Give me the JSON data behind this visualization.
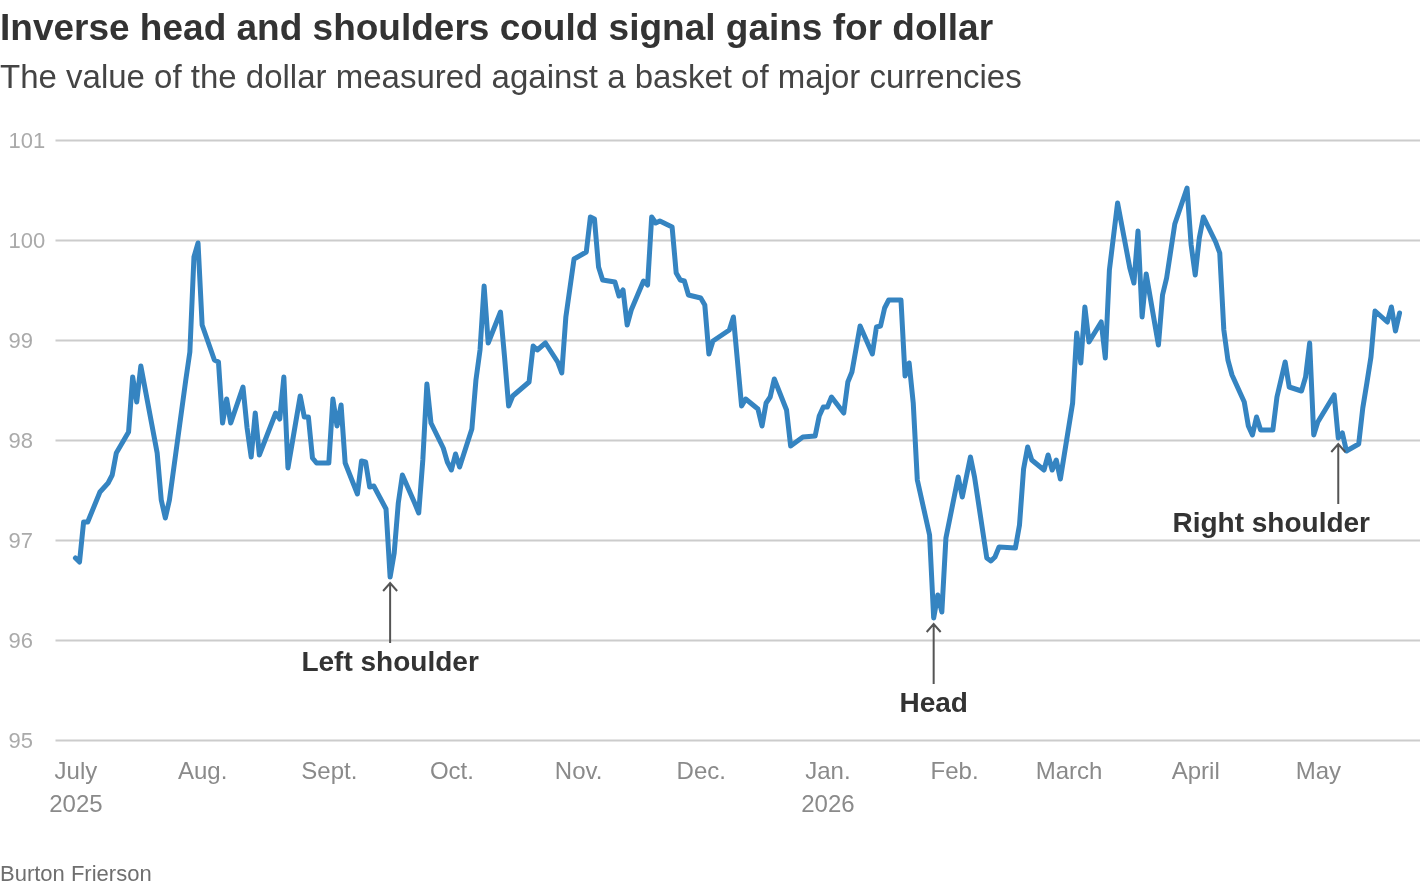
{
  "chart_data": {
    "type": "line",
    "title": "Inverse head and shoulders could signal gains for dollar",
    "subtitle": "The value of the dollar measured against a basket of major currencies",
    "x": [
      "2025-07-01",
      "2025-07-02",
      "2025-07-03",
      "2025-07-04",
      "2025-07-07",
      "2025-07-09",
      "2025-07-10",
      "2025-07-11",
      "2025-07-14",
      "2025-07-15",
      "2025-07-16",
      "2025-07-17",
      "2025-07-21",
      "2025-07-22",
      "2025-07-23",
      "2025-07-24",
      "2025-07-28",
      "2025-07-29",
      "2025-07-30",
      "2025-07-31",
      "2025-08-01",
      "2025-08-04",
      "2025-08-05",
      "2025-08-06",
      "2025-08-07",
      "2025-08-08",
      "2025-08-11",
      "2025-08-12",
      "2025-08-13",
      "2025-08-14",
      "2025-08-15",
      "2025-08-19",
      "2025-08-20",
      "2025-08-21",
      "2025-08-22",
      "2025-08-25",
      "2025-08-26",
      "2025-08-27",
      "2025-08-28",
      "2025-08-29",
      "2025-09-01",
      "2025-09-02",
      "2025-09-03",
      "2025-09-04",
      "2025-09-05",
      "2025-09-08",
      "2025-09-09",
      "2025-09-10",
      "2025-09-11",
      "2025-09-12",
      "2025-09-15",
      "2025-09-16",
      "2025-09-17",
      "2025-09-18",
      "2025-09-19",
      "2025-09-22",
      "2025-09-23",
      "2025-09-24",
      "2025-09-25",
      "2025-09-26",
      "2025-09-29",
      "2025-09-30",
      "2025-10-01",
      "2025-10-02",
      "2025-10-03",
      "2025-10-06",
      "2025-10-07",
      "2025-10-08",
      "2025-10-09",
      "2025-10-10",
      "2025-10-13",
      "2025-10-14",
      "2025-10-15",
      "2025-10-16",
      "2025-10-20",
      "2025-10-21",
      "2025-10-22",
      "2025-10-24",
      "2025-10-27",
      "2025-10-28",
      "2025-10-29",
      "2025-10-31",
      "2025-11-03",
      "2025-11-04",
      "2025-11-05",
      "2025-11-06",
      "2025-11-07",
      "2025-11-10",
      "2025-11-11",
      "2025-11-12",
      "2025-11-13",
      "2025-11-14",
      "2025-11-17",
      "2025-11-18",
      "2025-11-19",
      "2025-11-20",
      "2025-11-21",
      "2025-11-24",
      "2025-11-25",
      "2025-11-26",
      "2025-11-27",
      "2025-11-28",
      "2025-12-01",
      "2025-12-02",
      "2025-12-03",
      "2025-12-04",
      "2025-12-08",
      "2025-12-09",
      "2025-12-11",
      "2025-12-12",
      "2025-12-15",
      "2025-12-16",
      "2025-12-17",
      "2025-12-18",
      "2025-12-19",
      "2025-12-22",
      "2025-12-23",
      "2025-12-24",
      "2025-12-26",
      "2025-12-29",
      "2025-12-30",
      "2025-12-31",
      "2026-01-01",
      "2026-01-02",
      "2026-01-05",
      "2026-01-06",
      "2026-01-07",
      "2026-01-09",
      "2026-01-12",
      "2026-01-13",
      "2026-01-14",
      "2026-01-15",
      "2026-01-16",
      "2026-01-19",
      "2026-01-20",
      "2026-01-21",
      "2026-01-22",
      "2026-01-23",
      "2026-01-26",
      "2026-01-27",
      "2026-01-28",
      "2026-01-29",
      "2026-01-30",
      "2026-02-02",
      "2026-02-03",
      "2026-02-05",
      "2026-02-06",
      "2026-02-09",
      "2026-02-10",
      "2026-02-11",
      "2026-02-12",
      "2026-02-16",
      "2026-02-17",
      "2026-02-18",
      "2026-02-19",
      "2026-02-20",
      "2026-02-23",
      "2026-02-24",
      "2026-02-25",
      "2026-02-26",
      "2026-02-27",
      "2026-03-02",
      "2026-03-03",
      "2026-03-04",
      "2026-03-05",
      "2026-03-06",
      "2026-03-09",
      "2026-03-10",
      "2026-03-11",
      "2026-03-13",
      "2026-03-16",
      "2026-03-17",
      "2026-03-18",
      "2026-03-19",
      "2026-03-20",
      "2026-03-23",
      "2026-03-24",
      "2026-03-25",
      "2026-03-27",
      "2026-03-30",
      "2026-03-31",
      "2026-04-01",
      "2026-04-02",
      "2026-04-03",
      "2026-04-06",
      "2026-04-07",
      "2026-04-08",
      "2026-04-09",
      "2026-04-10",
      "2026-04-13",
      "2026-04-14",
      "2026-04-15",
      "2026-04-16",
      "2026-04-17",
      "2026-04-20",
      "2026-04-21",
      "2026-04-23",
      "2026-04-24",
      "2026-04-27",
      "2026-04-28",
      "2026-04-29",
      "2026-04-30",
      "2026-05-01",
      "2026-05-05",
      "2026-05-06",
      "2026-05-07",
      "2026-05-08",
      "2026-05-11",
      "2026-05-12",
      "2026-05-13",
      "2026-05-14",
      "2026-05-15",
      "2026-05-18",
      "2026-05-19",
      "2026-05-20",
      "2026-05-21"
    ],
    "series": [
      {
        "color": "#3584c1",
        "values": [
          96.82,
          96.78,
          97.18,
          97.18,
          97.48,
          97.57,
          97.65,
          97.87,
          98.08,
          98.63,
          98.38,
          98.74,
          97.87,
          97.4,
          97.22,
          97.4,
          98.6,
          98.88,
          99.83,
          99.97,
          99.15,
          98.8,
          98.78,
          98.17,
          98.41,
          98.17,
          98.53,
          98.12,
          97.83,
          98.27,
          97.85,
          98.27,
          98.21,
          98.63,
          97.72,
          98.44,
          98.23,
          98.23,
          97.82,
          97.77,
          97.77,
          98.41,
          98.14,
          98.35,
          97.77,
          97.46,
          97.79,
          97.78,
          97.53,
          97.54,
          97.31,
          96.63,
          96.87,
          97.37,
          97.65,
          97.37,
          97.27,
          97.8,
          98.56,
          98.17,
          97.92,
          97.78,
          97.7,
          97.86,
          97.73,
          98.11,
          98.6,
          98.9,
          99.54,
          98.97,
          99.28,
          98.83,
          98.34,
          98.44,
          98.58,
          98.94,
          98.9,
          98.97,
          98.78,
          98.67,
          99.23,
          99.81,
          99.88,
          100.23,
          100.21,
          99.73,
          99.6,
          99.58,
          99.44,
          99.5,
          99.15,
          99.3,
          99.59,
          99.55,
          100.23,
          100.17,
          100.19,
          100.13,
          99.67,
          99.6,
          99.59,
          99.45,
          99.42,
          99.35,
          98.86,
          98.99,
          99.1,
          99.23,
          98.34,
          98.41,
          98.31,
          98.14,
          98.37,
          98.43,
          98.61,
          98.3,
          97.94,
          97.97,
          98.03,
          98.04,
          98.24,
          98.33,
          98.33,
          98.43,
          98.27,
          98.58,
          98.68,
          99.14,
          98.86,
          99.13,
          99.14,
          99.32,
          99.4,
          99.4,
          98.64,
          98.77,
          98.37,
          97.6,
          97.05,
          96.22,
          96.45,
          96.28,
          97.02,
          97.63,
          97.43,
          97.83,
          97.63,
          96.82,
          96.79,
          96.83,
          96.93,
          96.92,
          97.15,
          97.71,
          97.93,
          97.8,
          97.7,
          97.85,
          97.7,
          97.8,
          97.61,
          98.37,
          99.07,
          98.77,
          99.33,
          98.98,
          99.18,
          98.82,
          99.7,
          100.37,
          99.72,
          99.57,
          100.09,
          99.23,
          99.66,
          98.95,
          99.45,
          99.62,
          100.16,
          100.52,
          99.95,
          99.65,
          100.02,
          100.23,
          99.98,
          99.87,
          99.1,
          98.8,
          98.65,
          98.38,
          98.14,
          98.05,
          98.23,
          98.1,
          98.1,
          98.43,
          98.78,
          98.53,
          98.49,
          98.63,
          98.97,
          98.05,
          98.18,
          98.45,
          98.02,
          98.07,
          97.89,
          97.96,
          98.32,
          98.57,
          98.83,
          99.29,
          99.18,
          99.33,
          99.09,
          99.27
        ]
      }
    ],
    "xlim": [
      "2025-06-26",
      "2026-05-26"
    ],
    "xticks": [
      {
        "value": "2025-07-01",
        "label": "July 2025"
      },
      {
        "value": "2025-08-01",
        "label": "Aug."
      },
      {
        "value": "2025-09-01",
        "label": "Sept."
      },
      {
        "value": "2025-10-01",
        "label": "Oct."
      },
      {
        "value": "2025-11-01",
        "label": "Nov."
      },
      {
        "value": "2025-12-01",
        "label": "Dec."
      },
      {
        "value": "2026-01-01",
        "label": "Jan. 2026"
      },
      {
        "value": "2026-02-01",
        "label": "Feb."
      },
      {
        "value": "2026-03-01",
        "label": "March"
      },
      {
        "value": "2026-04-01",
        "label": "April"
      },
      {
        "value": "2026-05-01",
        "label": "May"
      }
    ],
    "ylim": [
      95,
      101
    ],
    "yticks": [
      95,
      96,
      97,
      98,
      99,
      100,
      101
    ],
    "grid": "y",
    "annotations": [
      {
        "text": "Left shoulder",
        "x": "2025-09-16",
        "y": 96.63
      },
      {
        "text": "Head",
        "x": "2026-01-27",
        "y": 96.22
      },
      {
        "text": "Right shoulder",
        "x": "2026-05-06",
        "y": 98.02
      },
      "Burton Frierson"
    ]
  }
}
